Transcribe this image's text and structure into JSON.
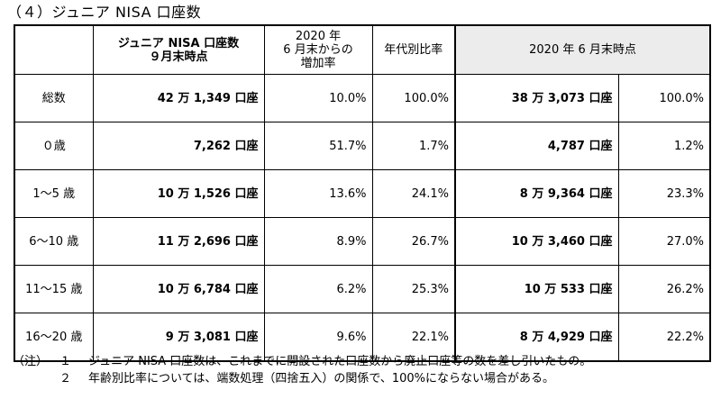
{
  "title": "（４）ジュニア NISA 口座数",
  "header": {
    "col_accounts": "ジュニア NISA 口座数\n９月末時点",
    "col_increase": "2020 年\n6 月末からの\n増加率",
    "col_ratio": "年代別比率",
    "col_2020": "2020 年 6 月末時点"
  },
  "rows": [
    {
      "label": "総数",
      "accounts": "42 万 1,349 口座",
      "increase": "10.0%",
      "ratio": "100.0%",
      "prev_accounts": "38 万 3,073 口座",
      "prev_ratio": "100.0%"
    },
    {
      "label": "０歳",
      "accounts": "7,262 口座",
      "increase": "51.7%",
      "ratio": "1.7%",
      "prev_accounts": "4,787 口座",
      "prev_ratio": "1.2%"
    },
    {
      "label": "1～5 歳",
      "accounts": "10 万 1,526 口座",
      "increase": "13.6%",
      "ratio": "24.1%",
      "prev_accounts": "8 万 9,364 口座",
      "prev_ratio": "23.3%"
    },
    {
      "label": "6～10 歳",
      "accounts": "11 万 2,696 口座",
      "increase": "8.9%",
      "ratio": "26.7%",
      "prev_accounts": "10 万 3,460 口座",
      "prev_ratio": "27.0%"
    },
    {
      "label": "11～15 歳",
      "accounts": "10 万 6,784 口座",
      "increase": "6.2%",
      "ratio": "25.3%",
      "prev_accounts": "10 万 533 口座",
      "prev_ratio": "26.2%"
    },
    {
      "label": "16～20 歳",
      "accounts": "9 万 3,081 口座",
      "increase": "9.6%",
      "ratio": "22.1%",
      "prev_accounts": "8 万 4,929 口座",
      "prev_ratio": "22.2%"
    }
  ],
  "notes": {
    "prefix": "（注）",
    "items": [
      {
        "num": "１",
        "text": "ジュニア NISA 口座数は、これまでに開設された口座数から廃止口座等の数を差し引いたもの。"
      },
      {
        "num": "２",
        "text": "年齢別比率については、端数処理（四捨五入）の関係で、100%にならない場合がある。"
      }
    ]
  }
}
